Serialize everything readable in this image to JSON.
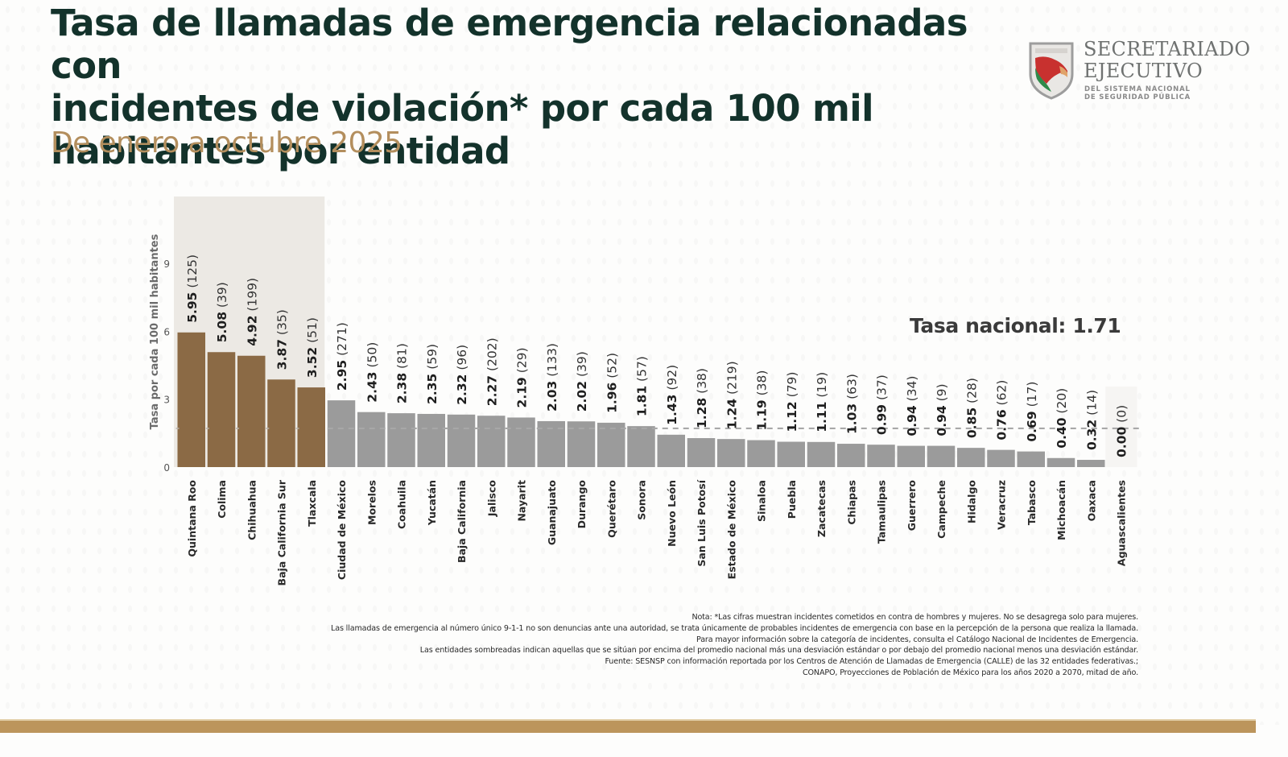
{
  "header": {
    "title_lines": [
      "Tasa de llamadas de emergencia relacionadas con",
      "incidentes de violación* por cada 100 mil",
      "habitantes por entidad"
    ],
    "subtitle": "De enero a octubre 2025"
  },
  "logo": {
    "icon": "shield-map-icon",
    "line1": "SECRETARIADO",
    "line2": "EJECUTIVO",
    "line3": "DEL SISTEMA NACIONAL",
    "line4": "DE SEGURIDAD PÚBLICA"
  },
  "chart_data": {
    "type": "bar",
    "title": "Tasa de llamadas de emergencia relacionadas con incidentes de violación* por cada 100 mil habitantes por entidad",
    "subtitle": "De enero a octubre 2025",
    "xlabel": "",
    "ylabel": "Tasa por cada 100 mil habitantes",
    "ylim": [
      0,
      11
    ],
    "yticks": [
      0,
      3,
      6,
      9
    ],
    "grid": false,
    "national_rate": 1.71,
    "national_label": "Tasa nacional: 1.71",
    "highlight_count": 5,
    "colors": {
      "highlight": "#8b6a45",
      "normal": "#9b9b9b",
      "shade": "#ece9e4",
      "reference_line": "#a8a8a8"
    },
    "categories": [
      "Quintana Roo",
      "Colima",
      "Chihuahua",
      "Baja California Sur",
      "Tlaxcala",
      "Ciudad de México",
      "Morelos",
      "Coahuila",
      "Yucatán",
      "Baja California",
      "Jalisco",
      "Nayarit",
      "Guanajuato",
      "Durango",
      "Querétaro",
      "Sonora",
      "Nuevo León",
      "San Luis Potosí",
      "Estado de México",
      "Sinaloa",
      "Puebla",
      "Zacatecas",
      "Chiapas",
      "Tamaulipas",
      "Guerrero",
      "Campeche",
      "Hidalgo",
      "Veracruz",
      "Tabasco",
      "Michoacán",
      "Oaxaca",
      "Aguascalientes"
    ],
    "values": [
      5.95,
      5.08,
      4.92,
      3.87,
      3.52,
      2.95,
      2.43,
      2.38,
      2.35,
      2.32,
      2.27,
      2.19,
      2.03,
      2.02,
      1.96,
      1.81,
      1.43,
      1.28,
      1.24,
      1.19,
      1.12,
      1.11,
      1.03,
      0.99,
      0.94,
      0.94,
      0.85,
      0.76,
      0.69,
      0.4,
      0.32,
      0.0
    ],
    "counts": [
      125,
      39,
      199,
      35,
      51,
      271,
      50,
      81,
      59,
      96,
      202,
      29,
      133,
      39,
      52,
      57,
      92,
      38,
      219,
      38,
      79,
      19,
      63,
      37,
      34,
      9,
      28,
      62,
      17,
      20,
      14,
      0
    ]
  },
  "notes": [
    "Nota: *Las cifras muestran incidentes cometidos en contra de hombres y mujeres. No se desagrega solo para mujeres.",
    "Las llamadas de emergencia al número único 9-1-1 no son denuncias ante una autoridad, se trata únicamente de probables incidentes de emergencia con base en la percepción de la persona que realiza la llamada.",
    "Para mayor información sobre la categoría de incidentes, consulta el Catálogo Nacional de Incidentes de Emergencia.",
    "Las entidades sombreadas indican aquellas que se sitúan por encima del promedio nacional más una desviación estándar o por debajo del promedio nacional menos una desviación estándar.",
    "Fuente: SESNSP con información reportada por los Centros de Atención de Llamadas de Emergencia (CALLE) de las 32 entidades federativas.;",
    "CONAPO, Proyecciones de Población de México para los años 2020 a 2070, mitad de año."
  ]
}
